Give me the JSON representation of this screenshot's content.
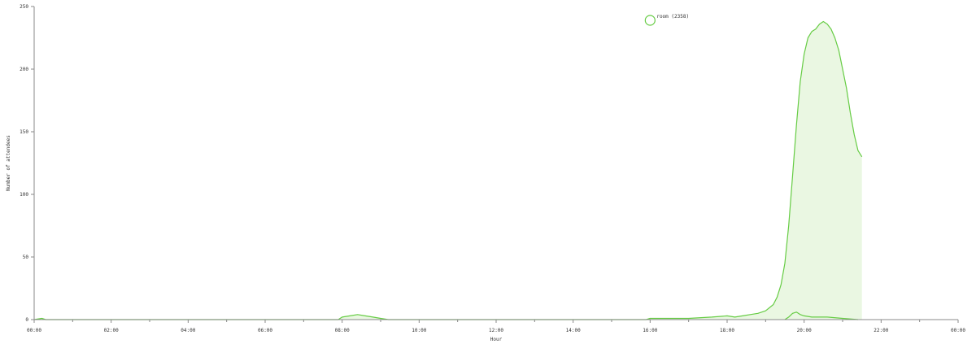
{
  "chart_data": {
    "type": "area",
    "xlabel": "Hour",
    "ylabel": "Number of attendees",
    "x_ticks": [
      "00:00",
      "02:00",
      "04:00",
      "06:00",
      "08:00",
      "10:00",
      "12:00",
      "14:00",
      "16:00",
      "18:00",
      "20:00",
      "22:00",
      "00:00"
    ],
    "y_ticks": [
      "0",
      "50",
      "100",
      "150",
      "200",
      "250"
    ],
    "xlim": [
      0,
      24
    ],
    "ylim": [
      0,
      250
    ],
    "grid": false,
    "legend_position": "top-center",
    "colors": {
      "line": "#66cc44",
      "fill": "#eaf7e2",
      "axis": "#888888"
    },
    "series": [
      {
        "name": "room (2358)",
        "x": [
          0,
          0.2,
          0.3,
          7.9,
          8.0,
          8.2,
          8.4,
          8.6,
          8.8,
          9.0,
          9.2,
          15.9,
          16.0,
          17.0,
          17.6,
          18.0,
          18.2,
          18.4,
          18.6,
          18.8,
          19.0,
          19.2,
          19.3,
          19.4,
          19.5,
          19.6,
          19.7,
          19.8,
          19.9,
          20.0,
          20.1,
          20.2,
          20.3,
          20.4,
          20.5,
          20.6,
          20.7,
          20.8,
          20.9,
          21.0,
          21.1,
          21.2,
          21.3,
          21.4,
          21.5
        ],
        "y": [
          0,
          1,
          0,
          0,
          2,
          3,
          4,
          3,
          2,
          1,
          0,
          0,
          1,
          1,
          2,
          3,
          2,
          3,
          4,
          5,
          7,
          12,
          18,
          28,
          45,
          75,
          115,
          155,
          190,
          212,
          225,
          230,
          232,
          236,
          238,
          236,
          232,
          225,
          215,
          200,
          185,
          165,
          148,
          135,
          130
        ]
      },
      {
        "name": "",
        "x": [
          19.5,
          19.6,
          19.7,
          19.8,
          19.9,
          20.0,
          20.2,
          20.6,
          21.0,
          21.4
        ],
        "y": [
          0,
          2,
          5,
          6,
          4,
          3,
          2,
          2,
          1,
          0
        ]
      }
    ]
  }
}
